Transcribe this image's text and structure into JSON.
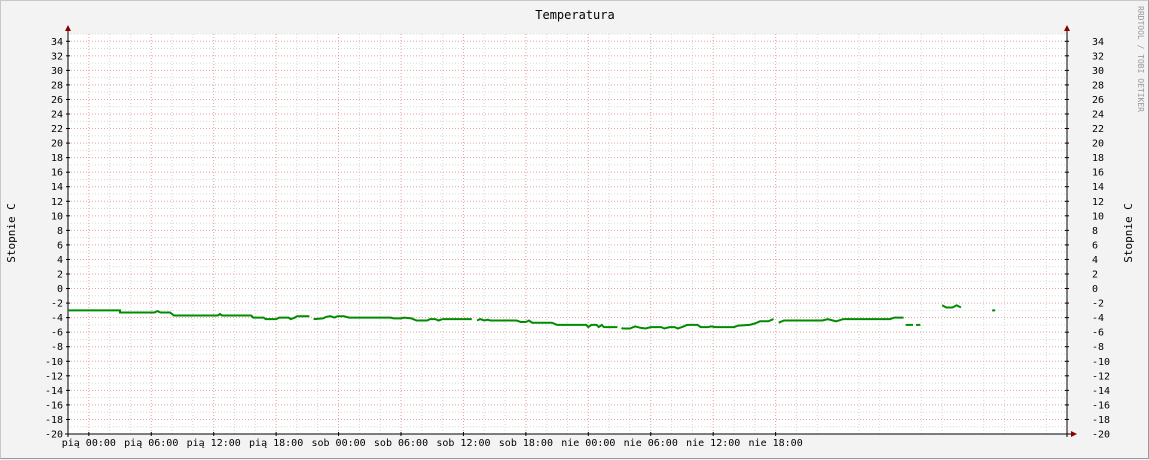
{
  "chart_data": {
    "type": "line",
    "title": "Temperatura",
    "ylabel": "Stopnie C",
    "ylabel_right": "Stopnie C",
    "watermark": "RRDTOOL / TOBI OETIKER",
    "ylim": [
      -20,
      35
    ],
    "yticks": [
      34,
      32,
      30,
      28,
      26,
      24,
      22,
      20,
      18,
      16,
      14,
      12,
      10,
      8,
      6,
      4,
      2,
      0,
      -2,
      -4,
      -6,
      -8,
      -10,
      -12,
      -14,
      -16,
      -18,
      -20
    ],
    "xlim": [
      -2,
      94
    ],
    "xticks": [
      {
        "x": 0,
        "label": "pią 00:00"
      },
      {
        "x": 6,
        "label": "pią 06:00"
      },
      {
        "x": 12,
        "label": "pią 12:00"
      },
      {
        "x": 18,
        "label": "pią 18:00"
      },
      {
        "x": 24,
        "label": "sob 00:00"
      },
      {
        "x": 30,
        "label": "sob 06:00"
      },
      {
        "x": 36,
        "label": "sob 12:00"
      },
      {
        "x": 42,
        "label": "sob 18:00"
      },
      {
        "x": 48,
        "label": "nie 00:00"
      },
      {
        "x": 54,
        "label": "nie 06:00"
      },
      {
        "x": 60,
        "label": "nie 12:00"
      },
      {
        "x": 66,
        "label": "nie 18:00"
      }
    ],
    "grid": true,
    "colors": {
      "series": "#008c00",
      "major_grid": "#e8a0a0",
      "minor_grid": "#d8d8d8",
      "axis": "#000000",
      "arrow": "#8b0000",
      "plot_bg": "#ffffff",
      "bg": "#f3f3f3"
    },
    "series": [
      {
        "segments": [
          [
            [
              -2,
              -3.0
            ],
            [
              3,
              -3.0
            ],
            [
              3,
              -3.3
            ],
            [
              6.3,
              -3.3
            ],
            [
              6.6,
              -3.1
            ],
            [
              6.9,
              -3.3
            ],
            [
              7.8,
              -3.3
            ],
            [
              8.2,
              -3.7
            ],
            [
              12.4,
              -3.7
            ],
            [
              12.6,
              -3.5
            ],
            [
              12.8,
              -3.7
            ],
            [
              15.6,
              -3.7
            ],
            [
              15.8,
              -4.0
            ],
            [
              16.8,
              -4.0
            ],
            [
              17.0,
              -4.2
            ],
            [
              18.0,
              -4.2
            ],
            [
              18.3,
              -4.0
            ],
            [
              19.2,
              -4.0
            ],
            [
              19.4,
              -4.2
            ],
            [
              19.8,
              -4.0
            ],
            [
              20.0,
              -3.8
            ],
            [
              21.2,
              -3.8
            ]
          ],
          [
            [
              21.6,
              -4.2
            ],
            [
              22.5,
              -4.1
            ],
            [
              22.8,
              -3.9
            ],
            [
              23.2,
              -3.8
            ],
            [
              23.6,
              -4.0
            ],
            [
              23.9,
              -3.8
            ],
            [
              24.5,
              -3.8
            ],
            [
              25.0,
              -4.0
            ],
            [
              29.0,
              -4.0
            ],
            [
              29.3,
              -4.1
            ],
            [
              30.0,
              -4.1
            ],
            [
              30.3,
              -4.0
            ],
            [
              31.0,
              -4.1
            ],
            [
              31.5,
              -4.4
            ],
            [
              32.5,
              -4.4
            ],
            [
              32.8,
              -4.2
            ],
            [
              33.3,
              -4.2
            ],
            [
              33.6,
              -4.4
            ],
            [
              34.0,
              -4.2
            ],
            [
              36.8,
              -4.2
            ]
          ],
          [
            [
              37.3,
              -4.4
            ],
            [
              37.6,
              -4.2
            ],
            [
              38.0,
              -4.4
            ],
            [
              38.3,
              -4.3
            ],
            [
              38.6,
              -4.4
            ],
            [
              41.1,
              -4.4
            ],
            [
              41.5,
              -4.6
            ],
            [
              42.0,
              -4.6
            ],
            [
              42.3,
              -4.4
            ],
            [
              42.6,
              -4.7
            ],
            [
              44.5,
              -4.7
            ],
            [
              45.0,
              -5.0
            ],
            [
              47.8,
              -5.0
            ],
            [
              48.0,
              -5.3
            ],
            [
              48.3,
              -5.0
            ],
            [
              48.8,
              -5.0
            ],
            [
              49.0,
              -5.3
            ],
            [
              49.3,
              -5.0
            ],
            [
              49.5,
              -5.3
            ],
            [
              50.8,
              -5.3
            ]
          ],
          [
            [
              51.2,
              -5.4
            ],
            [
              51.3,
              -5.5
            ],
            [
              52.0,
              -5.5
            ],
            [
              52.5,
              -5.2
            ],
            [
              53.0,
              -5.4
            ],
            [
              53.5,
              -5.5
            ],
            [
              54.0,
              -5.3
            ],
            [
              55.0,
              -5.3
            ],
            [
              55.3,
              -5.5
            ],
            [
              55.8,
              -5.3
            ],
            [
              56.3,
              -5.3
            ],
            [
              56.6,
              -5.5
            ],
            [
              57.0,
              -5.3
            ],
            [
              57.5,
              -5.0
            ],
            [
              58.5,
              -5.0
            ],
            [
              58.8,
              -5.3
            ],
            [
              59.5,
              -5.3
            ],
            [
              59.8,
              -5.2
            ],
            [
              60.2,
              -5.3
            ],
            [
              62.0,
              -5.3
            ],
            [
              62.4,
              -5.1
            ],
            [
              63.5,
              -5.0
            ],
            [
              64.0,
              -4.8
            ],
            [
              64.5,
              -4.5
            ],
            [
              65.3,
              -4.5
            ],
            [
              65.8,
              -4.2
            ]
          ],
          [
            [
              66.3,
              -4.7
            ],
            [
              66.8,
              -4.4
            ],
            [
              70.5,
              -4.4
            ],
            [
              71.0,
              -4.2
            ],
            [
              71.5,
              -4.4
            ],
            [
              71.8,
              -4.5
            ],
            [
              72.5,
              -4.2
            ],
            [
              77.0,
              -4.2
            ],
            [
              77.4,
              -4.0
            ],
            [
              78.3,
              -4.0
            ]
          ],
          [
            [
              78.5,
              -5.0
            ],
            [
              79.2,
              -5.0
            ]
          ],
          [
            [
              79.5,
              -5.0
            ],
            [
              79.9,
              -5.0
            ]
          ],
          [
            [
              82.0,
              -2.3
            ],
            [
              82.4,
              -2.6
            ],
            [
              83.0,
              -2.6
            ],
            [
              83.4,
              -2.3
            ],
            [
              83.8,
              -2.6
            ]
          ],
          [
            [
              86.8,
              -3.0
            ],
            [
              87.1,
              -3.0
            ]
          ]
        ]
      }
    ]
  }
}
